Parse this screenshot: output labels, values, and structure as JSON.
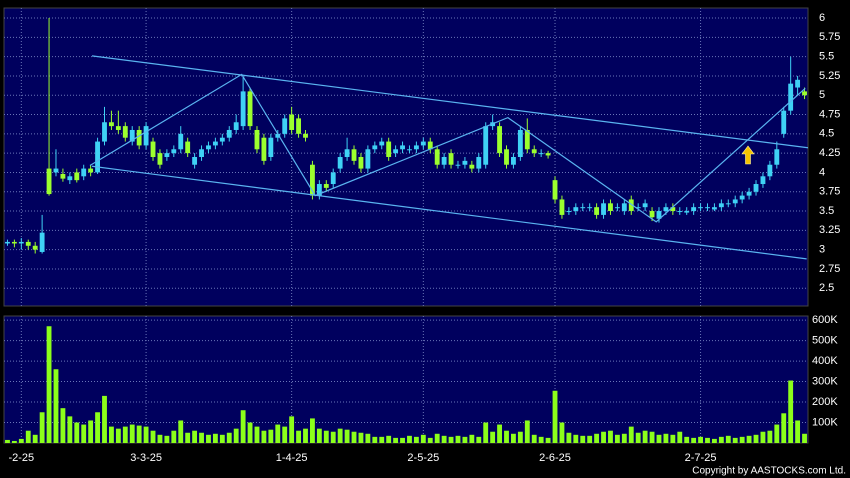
{
  "chart_data": {
    "type": "candlestick",
    "copyright": "Copyright by AASTOCKS.com Ltd.",
    "x": [
      0,
      1,
      2,
      3,
      4,
      5,
      6,
      7,
      8,
      9,
      10,
      11,
      12,
      13,
      14,
      15,
      16,
      17,
      18,
      19,
      20,
      21,
      22,
      23,
      24,
      25,
      26,
      27,
      28,
      29,
      30,
      31,
      32,
      33,
      34,
      35,
      36,
      37,
      38,
      39,
      40,
      41,
      42,
      43,
      44,
      45,
      46,
      47,
      48,
      49,
      50,
      51,
      52,
      53,
      54,
      55,
      56,
      57,
      58,
      59,
      60,
      61,
      62,
      63,
      64,
      65,
      66,
      67,
      68,
      69,
      70,
      71,
      72,
      73,
      74,
      75,
      76,
      77,
      78,
      79,
      80,
      81,
      82,
      83,
      84,
      85,
      86,
      87,
      88,
      89,
      90,
      91,
      92,
      93,
      94,
      95,
      96,
      97,
      98,
      99,
      100,
      101,
      102,
      103,
      104,
      105,
      106,
      107,
      108,
      109,
      110,
      111,
      112,
      113,
      114,
      115
    ],
    "xlim": [
      -0.5,
      115.5
    ],
    "xticks": [
      {
        "value": 2,
        "label": "-2-25"
      },
      {
        "value": 20,
        "label": "3-3-25"
      },
      {
        "value": 41,
        "label": "1-4-25"
      },
      {
        "value": 60,
        "label": "2-5-25"
      },
      {
        "value": 79,
        "label": "2-6-25"
      },
      {
        "value": 100,
        "label": "2-7-25"
      }
    ],
    "up_color": "#3fd2f5",
    "down_color": "#9cff2e",
    "grid": true,
    "price": {
      "open": [
        3.08,
        3.1,
        3.08,
        3.1,
        3.05,
        2.97,
        4.05,
        4.0,
        3.98,
        3.9,
        4.0,
        3.95,
        4.05,
        4.0,
        4.4,
        4.65,
        4.6,
        4.6,
        4.4,
        4.55,
        4.35,
        4.4,
        4.25,
        4.2,
        4.25,
        4.3,
        4.4,
        4.1,
        4.2,
        4.3,
        4.35,
        4.4,
        4.45,
        4.55,
        4.6,
        5.05,
        4.55,
        4.45,
        4.2,
        4.45,
        4.5,
        4.75,
        4.7,
        4.5,
        4.1,
        3.7,
        3.85,
        3.85,
        4.05,
        4.2,
        4.3,
        4.2,
        4.05,
        4.3,
        4.35,
        4.4,
        4.25,
        4.3,
        4.3,
        4.3,
        4.35,
        4.4,
        4.3,
        4.1,
        4.25,
        4.1,
        4.1,
        4.1,
        4.05,
        4.1,
        4.6,
        4.6,
        4.3,
        4.1,
        4.2,
        4.55,
        4.3,
        4.25,
        4.25,
        3.9,
        3.65,
        3.5,
        3.5,
        3.55,
        3.55,
        3.55,
        3.45,
        3.6,
        3.55,
        3.5,
        3.65,
        3.55,
        3.55,
        3.5,
        3.4,
        3.5,
        3.55,
        3.5,
        3.48,
        3.5,
        3.55,
        3.55,
        3.52,
        3.55,
        3.6,
        3.6,
        3.65,
        3.7,
        3.75,
        3.85,
        3.95,
        4.1,
        4.5,
        4.8,
        5.1,
        5.05
      ],
      "high": [
        3.13,
        3.13,
        3.15,
        3.13,
        3.1,
        3.45,
        6.0,
        4.3,
        4.05,
        4.0,
        4.05,
        4.1,
        4.1,
        4.45,
        4.85,
        4.8,
        4.8,
        4.65,
        4.6,
        4.6,
        4.65,
        4.45,
        4.3,
        4.3,
        4.35,
        4.6,
        4.45,
        4.25,
        4.35,
        4.4,
        4.45,
        4.5,
        4.6,
        4.75,
        5.25,
        5.1,
        4.6,
        4.5,
        4.5,
        4.55,
        4.75,
        4.85,
        4.75,
        4.55,
        4.15,
        3.9,
        3.9,
        4.05,
        4.25,
        4.45,
        4.35,
        4.25,
        4.35,
        4.4,
        4.45,
        4.45,
        4.35,
        4.4,
        4.35,
        4.4,
        4.45,
        4.45,
        4.35,
        4.25,
        4.3,
        4.15,
        4.2,
        4.15,
        4.25,
        4.65,
        4.75,
        4.65,
        4.35,
        4.25,
        4.6,
        4.7,
        4.35,
        4.3,
        4.28,
        3.95,
        3.7,
        3.55,
        3.6,
        3.6,
        3.6,
        3.6,
        3.65,
        3.65,
        3.6,
        3.65,
        3.7,
        3.6,
        3.65,
        3.55,
        3.55,
        3.6,
        3.6,
        3.55,
        3.55,
        3.6,
        3.6,
        3.6,
        3.6,
        3.65,
        3.65,
        3.7,
        3.75,
        3.8,
        3.9,
        4.0,
        4.15,
        4.4,
        4.85,
        5.5,
        5.25,
        5.1
      ],
      "low": [
        3.05,
        3.03,
        3.0,
        3.0,
        2.95,
        2.95,
        3.7,
        3.95,
        3.88,
        3.85,
        3.87,
        3.9,
        3.95,
        3.98,
        4.35,
        4.55,
        4.5,
        4.4,
        4.35,
        4.3,
        4.3,
        4.15,
        4.05,
        4.15,
        4.2,
        4.25,
        4.2,
        4.05,
        4.15,
        4.25,
        4.3,
        4.35,
        4.4,
        4.5,
        4.55,
        4.55,
        4.25,
        4.1,
        4.15,
        4.4,
        4.45,
        4.5,
        4.45,
        4.4,
        3.65,
        3.65,
        3.75,
        3.8,
        4.0,
        4.15,
        4.1,
        4.0,
        4.0,
        4.25,
        4.3,
        4.15,
        4.2,
        4.25,
        4.25,
        4.25,
        4.3,
        4.25,
        4.05,
        4.05,
        4.05,
        4.05,
        4.05,
        4.0,
        4.0,
        4.05,
        4.55,
        4.2,
        4.05,
        4.05,
        4.15,
        4.25,
        4.2,
        4.2,
        4.18,
        3.6,
        3.4,
        3.45,
        3.45,
        3.5,
        3.5,
        3.4,
        3.4,
        3.45,
        3.5,
        3.45,
        3.45,
        3.5,
        3.5,
        3.37,
        3.35,
        3.45,
        3.45,
        3.45,
        3.45,
        3.45,
        3.5,
        3.5,
        3.5,
        3.5,
        3.55,
        3.55,
        3.6,
        3.65,
        3.7,
        3.8,
        3.9,
        4.05,
        4.45,
        4.75,
        5.0,
        4.95
      ],
      "close": [
        3.1,
        3.08,
        3.1,
        3.05,
        3.0,
        3.22,
        3.72,
        4.05,
        3.92,
        3.95,
        3.9,
        4.05,
        4.0,
        4.4,
        4.65,
        4.6,
        4.55,
        4.45,
        4.55,
        4.35,
        4.6,
        4.2,
        4.1,
        4.25,
        4.3,
        4.5,
        4.25,
        4.2,
        4.3,
        4.35,
        4.4,
        4.45,
        4.55,
        4.65,
        5.05,
        4.6,
        4.3,
        4.15,
        4.45,
        4.5,
        4.7,
        4.55,
        4.5,
        4.45,
        3.7,
        3.85,
        3.8,
        4.0,
        4.2,
        4.3,
        4.15,
        4.05,
        4.3,
        4.35,
        4.4,
        4.2,
        4.3,
        4.35,
        4.3,
        4.35,
        4.4,
        4.3,
        4.1,
        4.2,
        4.1,
        4.1,
        4.15,
        4.05,
        4.2,
        4.6,
        4.65,
        4.25,
        4.1,
        4.2,
        4.55,
        4.3,
        4.25,
        4.25,
        4.22,
        3.65,
        3.45,
        3.5,
        3.55,
        3.55,
        3.55,
        3.45,
        3.6,
        3.5,
        3.55,
        3.6,
        3.5,
        3.55,
        3.6,
        3.42,
        3.5,
        3.55,
        3.5,
        3.5,
        3.5,
        3.55,
        3.55,
        3.55,
        3.55,
        3.6,
        3.6,
        3.65,
        3.7,
        3.75,
        3.85,
        3.95,
        4.1,
        4.3,
        4.8,
        5.15,
        5.2,
        5.0
      ],
      "ylim": [
        2.27,
        6.13
      ],
      "yticks": [
        6,
        5.75,
        5.5,
        5.25,
        5,
        4.75,
        4.5,
        4.25,
        4,
        3.75,
        3.5,
        3.25,
        3,
        2.75,
        2.5
      ],
      "trend_lines": [
        {
          "x": [
            12.2,
            115.5
          ],
          "y": [
            5.51,
            4.32
          ]
        },
        {
          "x": [
            12.2,
            115.3
          ],
          "y": [
            4.08,
            2.88
          ]
        },
        {
          "x": [
            11.9,
            33.8,
            44.4,
            72.2,
            93.6,
            115.1
          ],
          "y": [
            4.09,
            5.27,
            3.7,
            4.71,
            3.36,
            5.09
          ]
        }
      ],
      "line_color": "#5ab4f0"
    },
    "volume": {
      "values": [
        15000,
        10000,
        20000,
        60000,
        40000,
        150000,
        570000,
        360000,
        170000,
        130000,
        100000,
        90000,
        110000,
        150000,
        230000,
        80000,
        70000,
        80000,
        90000,
        85000,
        80000,
        60000,
        40000,
        35000,
        60000,
        110000,
        50000,
        60000,
        50000,
        40000,
        45000,
        40000,
        50000,
        70000,
        160000,
        100000,
        80000,
        60000,
        65000,
        90000,
        80000,
        130000,
        60000,
        70000,
        120000,
        70000,
        60000,
        55000,
        70000,
        65000,
        55000,
        50000,
        45000,
        30000,
        30000,
        35000,
        25000,
        25000,
        35000,
        30000,
        40000,
        25000,
        45000,
        35000,
        30000,
        35000,
        30000,
        40000,
        30000,
        100000,
        55000,
        90000,
        60000,
        45000,
        55000,
        110000,
        40000,
        30000,
        25000,
        255000,
        100000,
        50000,
        40000,
        35000,
        35000,
        45000,
        55000,
        60000,
        40000,
        45000,
        80000,
        50000,
        60000,
        55000,
        40000,
        45000,
        40000,
        55000,
        30000,
        25000,
        30000,
        25000,
        20000,
        30000,
        35000,
        25000,
        30000,
        35000,
        40000,
        55000,
        60000,
        90000,
        145000,
        305000,
        110000,
        45000
      ],
      "color": "#8cff1a",
      "ylim": [
        0,
        620000
      ],
      "yticks": [
        {
          "value": 600000,
          "label": "600K"
        },
        {
          "value": 500000,
          "label": "500K"
        },
        {
          "value": 400000,
          "label": "400K"
        },
        {
          "value": 300000,
          "label": "300K"
        },
        {
          "value": 200000,
          "label": "200K"
        },
        {
          "value": 100000,
          "label": "100K"
        }
      ]
    }
  }
}
